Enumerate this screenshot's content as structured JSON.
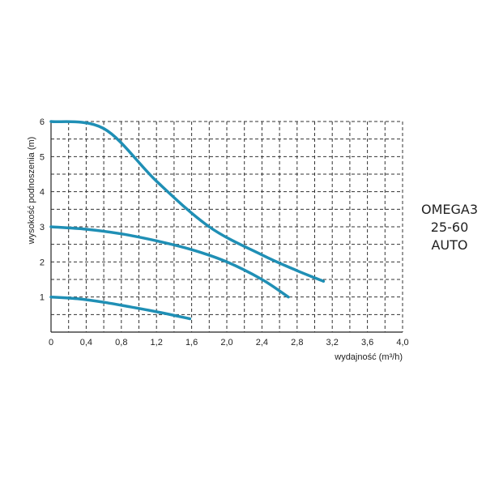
{
  "chart_data": {
    "type": "line",
    "title": "",
    "xlabel": "wydajność (m³/h)",
    "ylabel": "wysokość podnoszenia (m)",
    "xlim": [
      0,
      4.0
    ],
    "ylim": [
      0,
      6
    ],
    "x_ticks": [
      "0",
      "0,4",
      "0,8",
      "1,2",
      "1,6",
      "2,0",
      "2,4",
      "2,8",
      "3,2",
      "3,6",
      "4,0"
    ],
    "y_ticks": [
      "1",
      "2",
      "3",
      "4",
      "5",
      "6"
    ],
    "grid": true,
    "grid_style": "dashed",
    "line_color": "#1f8fb5",
    "series": [
      {
        "x": [
          0,
          0.3,
          0.6,
          0.9,
          1.2,
          1.58
        ],
        "y": [
          1.0,
          0.95,
          0.85,
          0.72,
          0.58,
          0.38
        ]
      },
      {
        "x": [
          0,
          0.4,
          0.8,
          1.2,
          1.6,
          2.0,
          2.4,
          2.7
        ],
        "y": [
          3.0,
          2.93,
          2.8,
          2.6,
          2.35,
          2.0,
          1.5,
          1.0
        ]
      },
      {
        "x": [
          0,
          0.6,
          1.2,
          1.8,
          2.4,
          2.8,
          3.1
        ],
        "y": [
          6.0,
          5.8,
          4.3,
          3.0,
          2.2,
          1.75,
          1.45
        ]
      }
    ]
  },
  "model": {
    "line1": "OMEGA3",
    "line2": "25-60",
    "line3": "AUTO"
  }
}
